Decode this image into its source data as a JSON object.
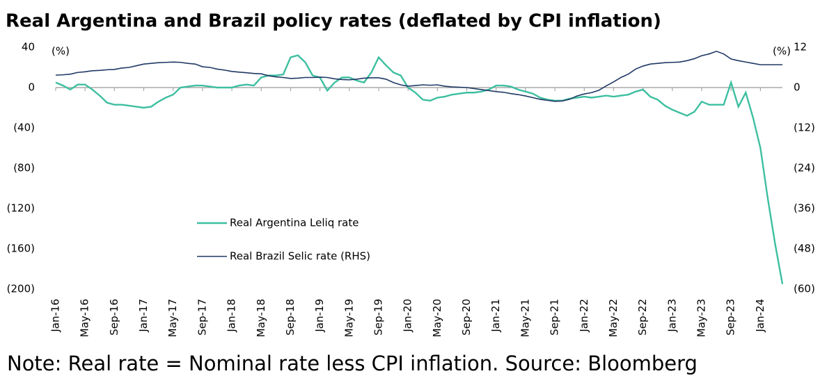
{
  "chart_data": {
    "type": "line",
    "title": "Real Argentina and Brazil policy rates (deflated by CPI inflation)",
    "note": "Note: Real rate = Nominal rate less CPI inflation. Source: Bloomberg",
    "ylabel": "(%)",
    "y2label": "(%)",
    "categories": [
      "Jan-16",
      null,
      null,
      null,
      "May-16",
      null,
      null,
      null,
      "Sep-16",
      null,
      null,
      null,
      "Jan-17",
      null,
      null,
      null,
      "May-17",
      null,
      null,
      null,
      "Sep-17",
      null,
      null,
      null,
      "Jan-18",
      null,
      null,
      null,
      "May-18",
      null,
      null,
      null,
      "Sep-18",
      null,
      null,
      null,
      "Jan-19",
      null,
      null,
      null,
      "May-19",
      null,
      null,
      null,
      "Sep-19",
      null,
      null,
      null,
      "Jan-20",
      null,
      null,
      null,
      "May-20",
      null,
      null,
      null,
      "Sep-20",
      null,
      null,
      null,
      "Jan-21",
      null,
      null,
      null,
      "May-21",
      null,
      null,
      null,
      "Sep-21",
      null,
      null,
      null,
      "Jan-22",
      null,
      null,
      null,
      "May-22",
      null,
      null,
      null,
      "Sep-22",
      null,
      null,
      null,
      "Jan-23",
      null,
      null,
      null,
      "May-23",
      null,
      null,
      null,
      "Sep-23",
      null,
      null,
      null,
      "Jan-24",
      null,
      null,
      null
    ],
    "series": [
      {
        "name": "Real Argentina Leliq rate",
        "color": "#3dbfa0",
        "axis": "y",
        "values": [
          5,
          2,
          -2,
          3,
          3,
          -2,
          -8,
          -15,
          -17,
          -17,
          -18,
          -19,
          -20,
          -19,
          -14,
          -10,
          -7,
          0,
          1,
          2,
          2,
          1,
          0,
          0,
          0,
          2,
          3,
          2,
          10,
          12,
          12,
          13,
          30,
          32,
          25,
          12,
          10,
          -3,
          5,
          10,
          10,
          7,
          5,
          15,
          30,
          22,
          15,
          12,
          0,
          -5,
          -12,
          -13,
          -10,
          -9,
          -7,
          -6,
          -5,
          -5,
          -4,
          -2,
          2,
          2,
          1,
          -2,
          -4,
          -6,
          -10,
          -12,
          -13,
          -13,
          -11,
          -10,
          -9,
          -10,
          -9,
          -8,
          -9,
          -8,
          -7,
          -4,
          -2,
          -9,
          -12,
          -18,
          -22,
          -25,
          -28,
          -24,
          -14,
          -17,
          -17,
          -17,
          5,
          -19,
          -5,
          -30,
          -60,
          -110,
          -155,
          -195
        ]
      },
      {
        "name": "Real Brazil Selic rate (RHS)",
        "color": "#1f3864",
        "axis": "y2",
        "values": [
          3.7,
          3.8,
          4,
          4.5,
          4.7,
          5,
          5.1,
          5.3,
          5.4,
          5.8,
          6,
          6.5,
          7,
          7.2,
          7.4,
          7.5,
          7.6,
          7.5,
          7.2,
          7,
          6.2,
          6,
          5.5,
          5.2,
          4.8,
          4.6,
          4.4,
          4.2,
          4.1,
          3.5,
          3.2,
          3,
          2.7,
          2.8,
          3,
          3,
          3.1,
          3,
          2.6,
          2.4,
          2.3,
          2.5,
          2.8,
          2.9,
          2.9,
          2.5,
          1.5,
          0.8,
          0.4,
          0.6,
          0.8,
          0.7,
          0.8,
          0.4,
          0.2,
          0.1,
          0,
          -0.3,
          -0.6,
          -0.9,
          -1.2,
          -1.4,
          -1.8,
          -2.1,
          -2.5,
          -3,
          -3.5,
          -3.8,
          -4.1,
          -4,
          -3.5,
          -2.5,
          -1.9,
          -1.5,
          -0.8,
          0.5,
          1.7,
          3,
          4,
          5.5,
          6.4,
          7,
          7.2,
          7.4,
          7.5,
          7.6,
          8,
          8.6,
          9.5,
          10,
          10.8,
          10,
          8.5,
          8,
          7.6,
          7.2,
          6.8,
          6.8,
          6.8,
          6.8
        ]
      }
    ],
    "ylim": [
      -200,
      40
    ],
    "yticks": [
      {
        "value": -200,
        "label": "(200)"
      },
      {
        "value": -160,
        "label": "(160)"
      },
      {
        "value": -120,
        "label": "(120)"
      },
      {
        "value": -80,
        "label": "(80)"
      },
      {
        "value": -40,
        "label": "(40)"
      },
      0,
      40
    ],
    "y2lim": [
      -60,
      12
    ],
    "y2ticks": [
      {
        "value": -60,
        "label": "(60)"
      },
      {
        "value": -48,
        "label": "(48)"
      },
      {
        "value": -36,
        "label": "(36)"
      },
      {
        "value": -24,
        "label": "(24)"
      },
      {
        "value": -12,
        "label": "(12)"
      },
      0,
      12
    ],
    "grid": false
  }
}
